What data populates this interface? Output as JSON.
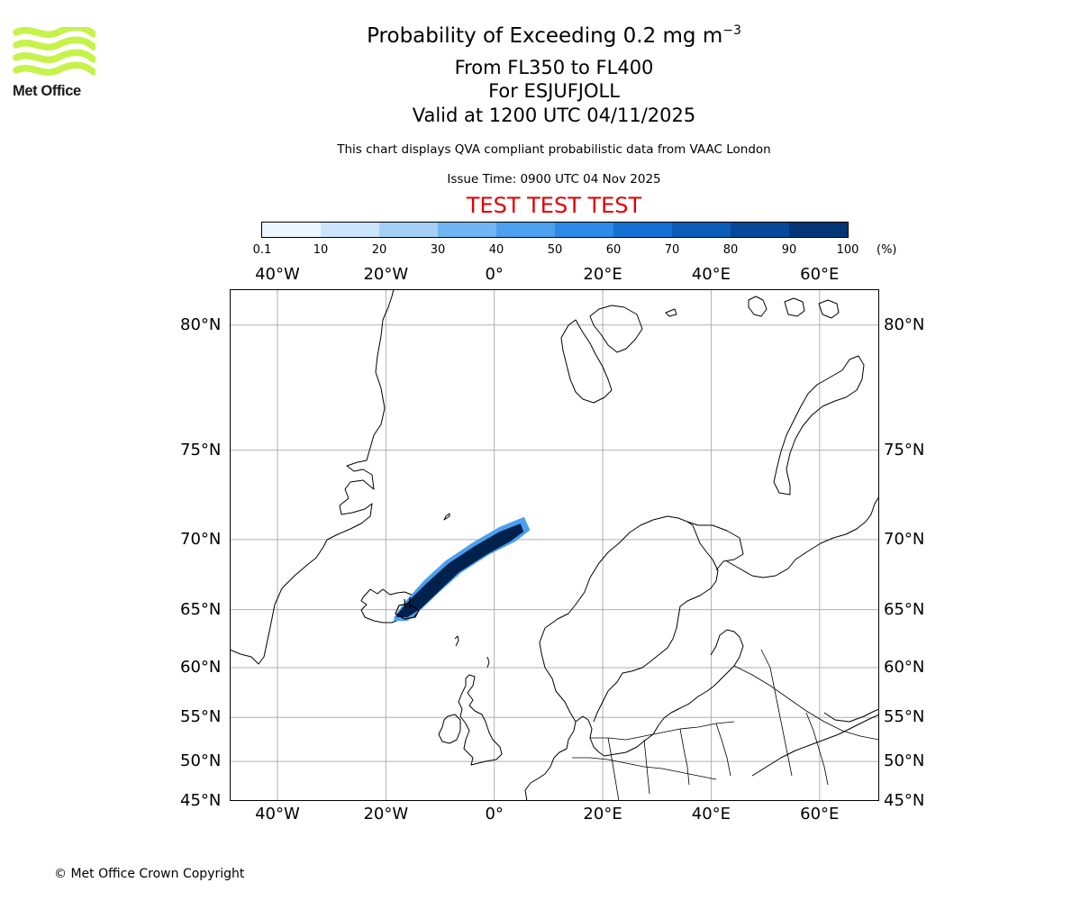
{
  "logo": {
    "text": "Met Office",
    "color": "#c6f24a"
  },
  "title": {
    "main_prefix": "Probability of Exceeding 0.2 mg m",
    "main_exponent": "−3",
    "levels": "From FL350 to FL400",
    "for": "For ESJUFJOLL",
    "valid": "Valid at 1200 UTC 04/11/2025"
  },
  "note": "This chart displays QVA compliant probabilistic data from VAAC London",
  "issue_time": "Issue Time: 0900 UTC 04 Nov 2025",
  "test_banner": {
    "text": "TEST TEST TEST",
    "color": "#e00000"
  },
  "colorbar": {
    "unit": "(%)",
    "ticks": [
      "0.1",
      "10",
      "20",
      "30",
      "40",
      "50",
      "60",
      "70",
      "80",
      "90",
      "100"
    ],
    "colors": [
      "#eef6ff",
      "#cae4fb",
      "#a5cff6",
      "#71b5f2",
      "#4ba0ef",
      "#2b8ae8",
      "#1471d3",
      "#0a5db8",
      "#064998",
      "#033576",
      "#01214d"
    ]
  },
  "map": {
    "lon_ticks": [
      {
        "value": -40,
        "label": "40°W"
      },
      {
        "value": -20,
        "label": "20°W"
      },
      {
        "value": 0,
        "label": "0°"
      },
      {
        "value": 20,
        "label": "20°E"
      },
      {
        "value": 40,
        "label": "40°E"
      },
      {
        "value": 60,
        "label": "60°E"
      }
    ],
    "lat_ticks": [
      {
        "value": 80,
        "label": "80°N"
      },
      {
        "value": 75,
        "label": "75°N"
      },
      {
        "value": 70,
        "label": "70°N"
      },
      {
        "value": 65,
        "label": "65°N"
      },
      {
        "value": 60,
        "label": "60°N"
      },
      {
        "value": 55,
        "label": "55°N"
      },
      {
        "value": 50,
        "label": "50°N"
      },
      {
        "value": 45,
        "label": "45°N"
      }
    ],
    "extent": {
      "lon_min": -48.8,
      "lon_max": 71.0,
      "lat_min": 45,
      "lat_max": 81.1
    },
    "source_volcano": "ESJUFJOLL",
    "plume_color_core": "#01214d",
    "plume_color_edge": "#4ba0ef"
  },
  "copyright": "© Met Office Crown Copyright"
}
